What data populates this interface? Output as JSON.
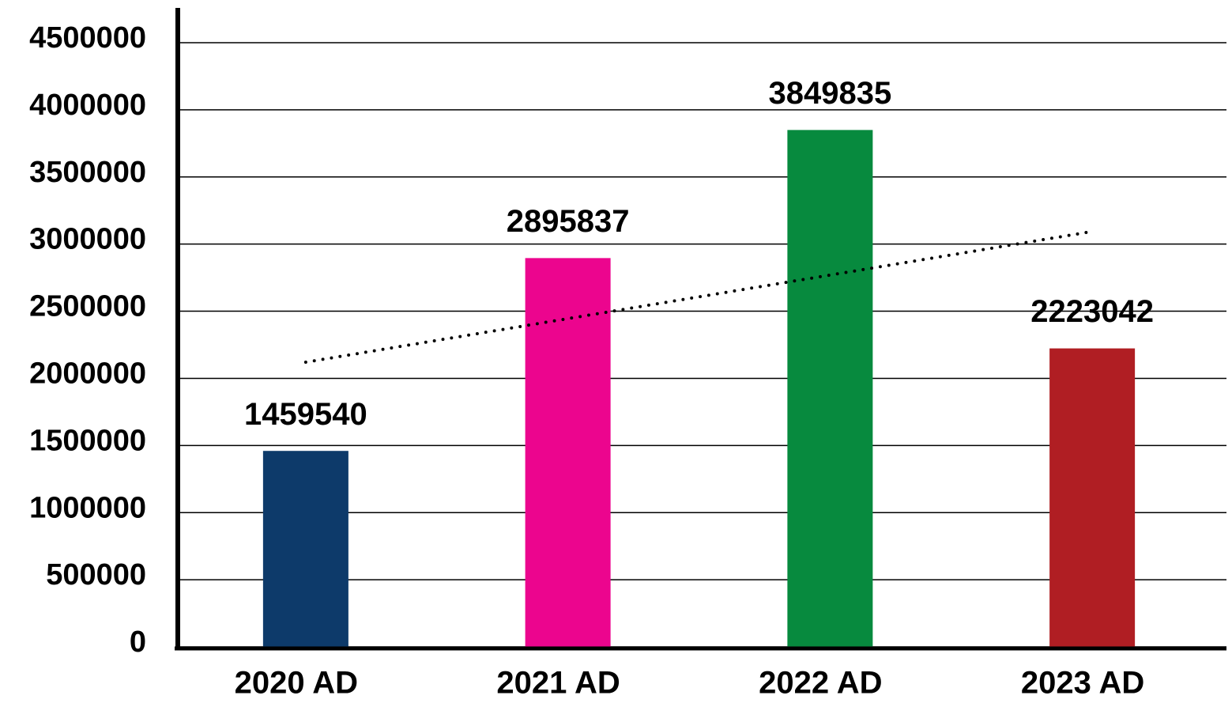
{
  "chart_data": {
    "type": "bar",
    "categories": [
      "2020 AD",
      "2021 AD",
      "2022 AD",
      "2023 AD"
    ],
    "values": [
      1459540,
      2895837,
      3849835,
      2223042
    ],
    "colors": [
      "#0d3a6a",
      "#ec058e",
      "#078a3e",
      "#b01e23"
    ],
    "ylim": [
      0,
      4500000
    ],
    "yticks": [
      0,
      500000,
      1000000,
      1500000,
      2000000,
      2500000,
      3000000,
      3500000,
      4000000,
      4500000
    ],
    "grid": true,
    "trendline": "linear"
  }
}
